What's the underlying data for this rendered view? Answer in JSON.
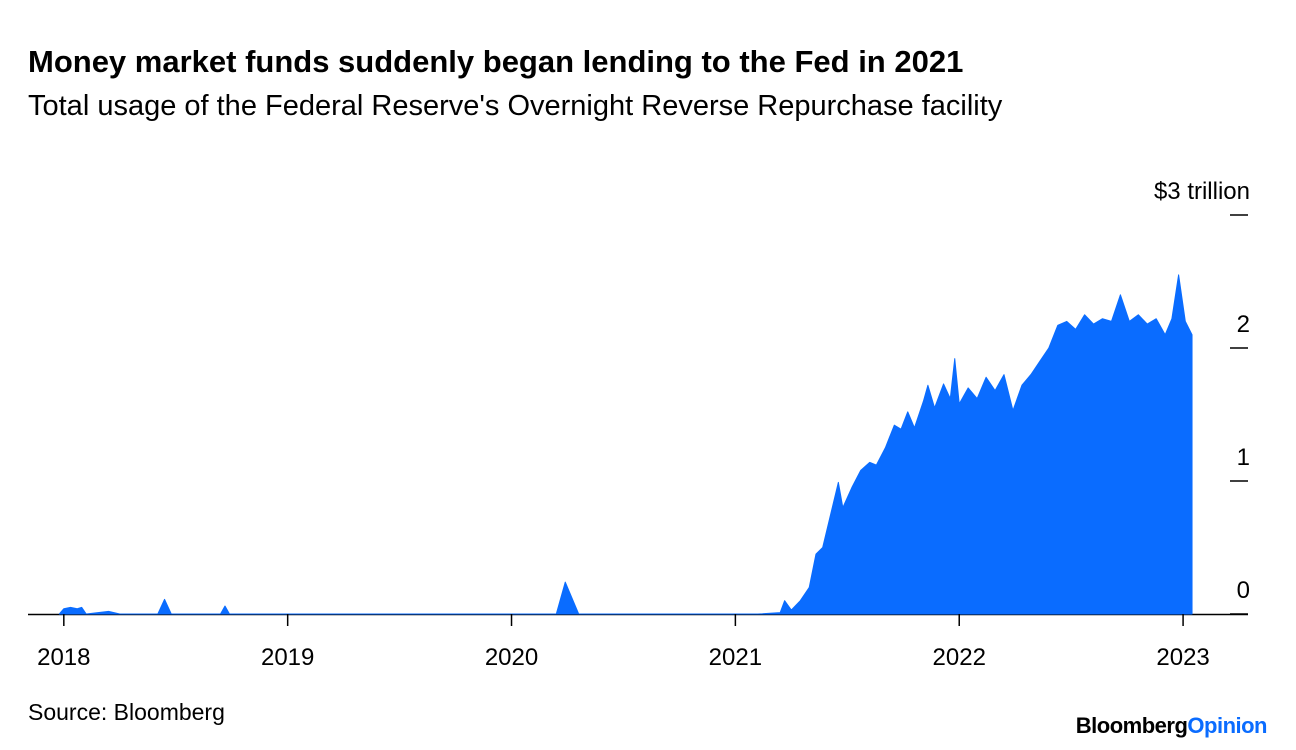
{
  "chart_data": {
    "type": "area",
    "title": "Money market funds suddenly began lending to the Fed in 2021",
    "subtitle": "Total usage of the Federal Reserve's Overnight Reverse Repurchase facility",
    "xlim": [
      2017.84,
      2023.29
    ],
    "xticks": [
      2018,
      2019,
      2020,
      2021,
      2022,
      2023
    ],
    "ylim": [
      0,
      3
    ],
    "yticks": [
      0,
      1,
      2,
      {
        "value": 3,
        "label": "$3 trillion"
      }
    ],
    "series": [
      {
        "color": "#0a6cff",
        "x": [
          2017.98,
          2018.0,
          2018.03,
          2018.06,
          2018.08,
          2018.1,
          2018.2,
          2018.25,
          2018.42,
          2018.45,
          2018.48,
          2018.7,
          2018.72,
          2018.74,
          2019.0,
          2020.2,
          2020.24,
          2020.3,
          2021.0,
          2021.1,
          2021.2,
          2021.22,
          2021.25,
          2021.29,
          2021.33,
          2021.36,
          2021.39,
          2021.43,
          2021.46,
          2021.48,
          2021.52,
          2021.56,
          2021.6,
          2021.63,
          2021.67,
          2021.71,
          2021.74,
          2021.77,
          2021.8,
          2021.84,
          2021.86,
          2021.89,
          2021.93,
          2021.96,
          2021.98,
          2022.0,
          2022.04,
          2022.08,
          2022.12,
          2022.16,
          2022.2,
          2022.24,
          2022.28,
          2022.32,
          2022.36,
          2022.4,
          2022.44,
          2022.48,
          2022.52,
          2022.56,
          2022.6,
          2022.64,
          2022.68,
          2022.72,
          2022.76,
          2022.8,
          2022.84,
          2022.88,
          2022.92,
          2022.95,
          2022.98,
          2023.01,
          2023.04
        ],
        "values": [
          0,
          0.04,
          0.05,
          0.04,
          0.05,
          0,
          0.02,
          0,
          0,
          0.11,
          0,
          0,
          0.06,
          0,
          0,
          0,
          0.24,
          0,
          0,
          0,
          0.01,
          0.1,
          0.03,
          0.1,
          0.2,
          0.45,
          0.5,
          0.78,
          0.99,
          0.8,
          0.95,
          1.08,
          1.14,
          1.12,
          1.25,
          1.42,
          1.39,
          1.52,
          1.4,
          1.6,
          1.72,
          1.55,
          1.73,
          1.62,
          1.92,
          1.58,
          1.7,
          1.62,
          1.78,
          1.68,
          1.8,
          1.53,
          1.72,
          1.8,
          1.9,
          2.0,
          2.17,
          2.2,
          2.14,
          2.25,
          2.18,
          2.22,
          2.2,
          2.4,
          2.2,
          2.25,
          2.18,
          2.22,
          2.1,
          2.22,
          2.55,
          2.2,
          2.1
        ]
      }
    ],
    "source": "Source: Bloomberg",
    "brand": "Bloomberg",
    "brand_accent": "Opinion"
  }
}
